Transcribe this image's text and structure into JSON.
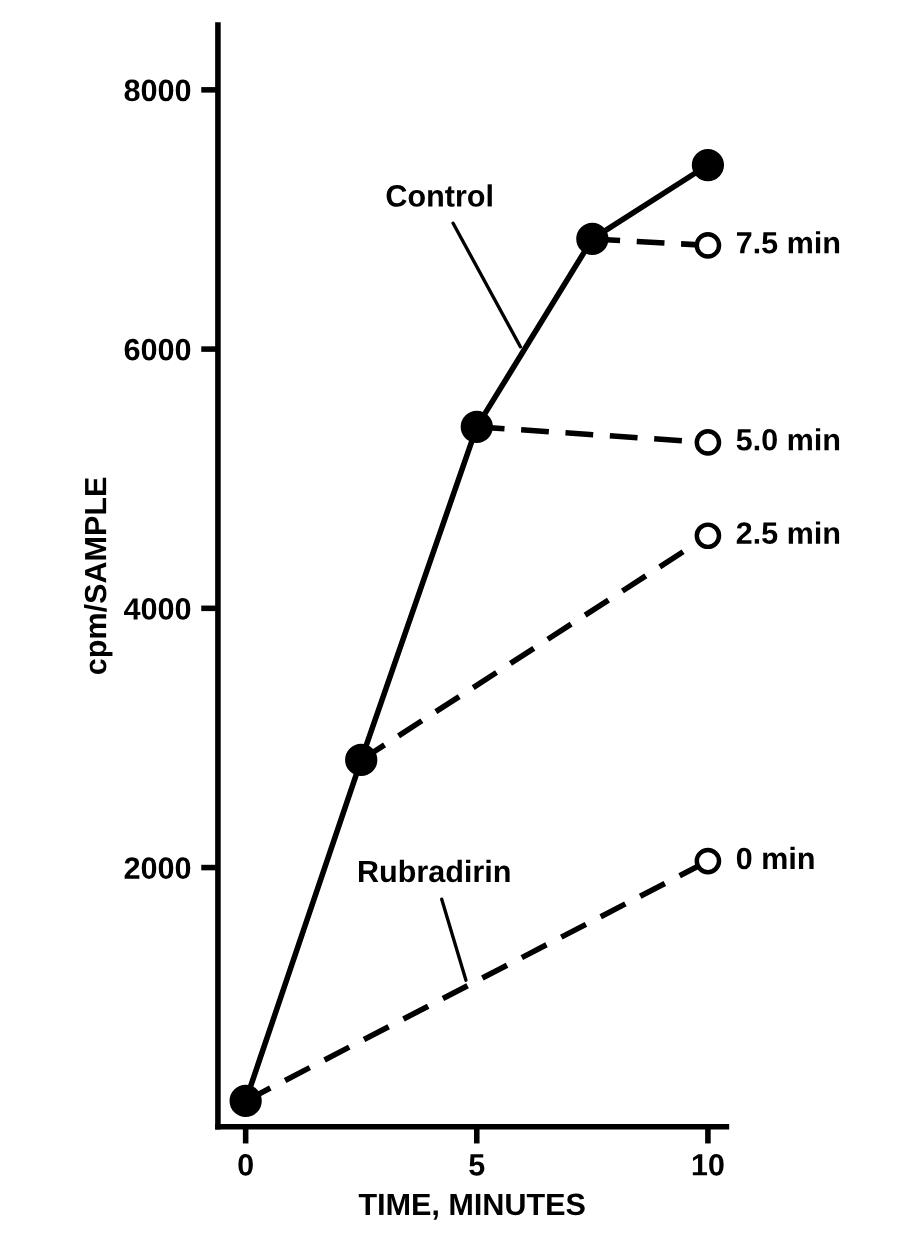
{
  "chart_data": {
    "type": "line",
    "xlabel": "TIME, MINUTES",
    "ylabel": "cpm/SAMPLE",
    "xlim": [
      -0.6,
      10.4
    ],
    "ylim": [
      0,
      8500
    ],
    "xticks": [
      0,
      5,
      10
    ],
    "yticks": [
      2000,
      4000,
      6000,
      8000
    ],
    "grid": false,
    "legend": false,
    "line_style": "dashed",
    "marker": "circle",
    "series": [
      {
        "x": [
          0,
          2.5,
          5,
          7.5,
          10
        ],
        "values": [
          200,
          2830,
          5400,
          6850,
          7420
        ],
        "color": "#000000",
        "line_style": "solid",
        "marker": "circle"
      },
      {
        "x": [
          0,
          10
        ],
        "values": [
          200,
          2050
        ],
        "color": "#000000"
      },
      {
        "x": [
          2.5,
          10
        ],
        "values": [
          2830,
          4560
        ],
        "color": "#000000"
      },
      {
        "x": [
          5,
          10
        ],
        "values": [
          5400,
          5280
        ],
        "color": "#000000"
      },
      {
        "x": [
          7.5,
          10
        ],
        "values": [
          6850,
          6800
        ],
        "color": "#000000"
      }
    ],
    "annotations": [
      {
        "text": "Control",
        "x": 6,
        "y": 5980
      },
      {
        "text": "Rubradirin",
        "x": 4.8,
        "y": 1090
      },
      "0 min",
      "2.5 min",
      "5.0 min",
      "7.5 min"
    ]
  }
}
